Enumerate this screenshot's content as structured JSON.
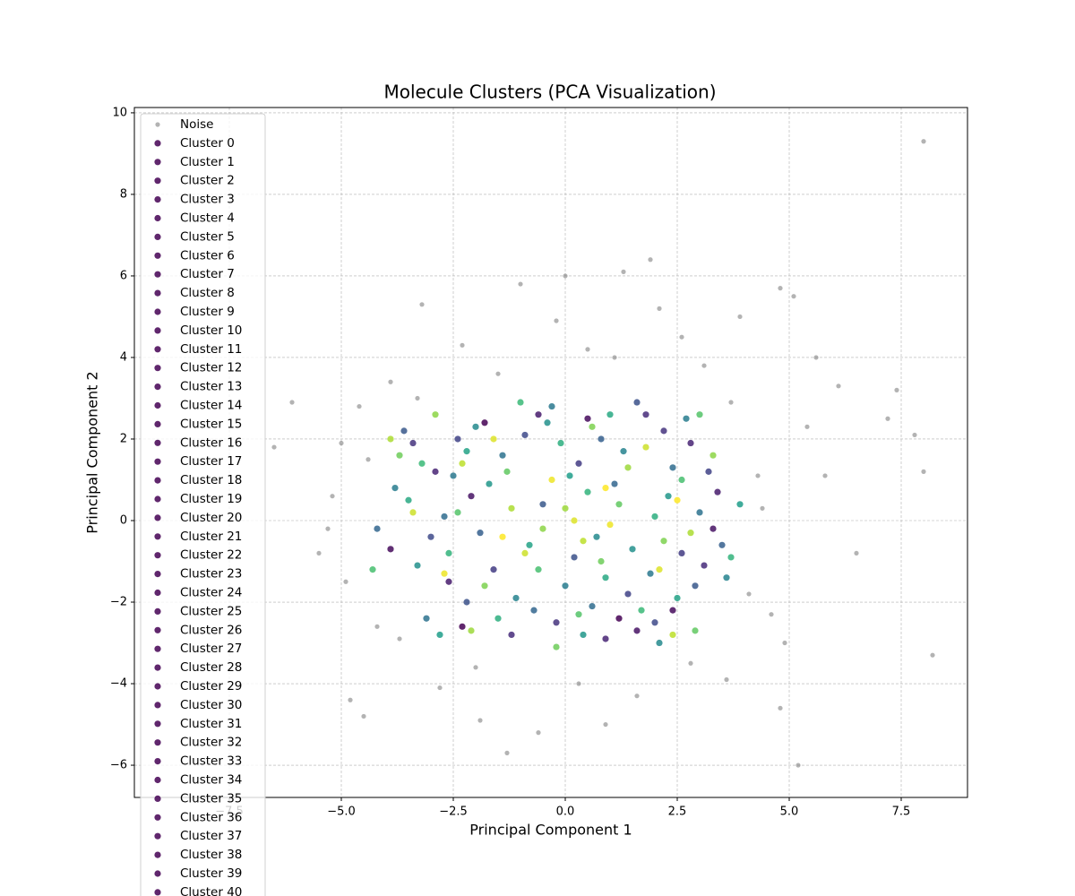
{
  "chart_data": {
    "type": "scatter",
    "title": "Molecule Clusters (PCA Visualization)",
    "x_label": "Principal Component 1",
    "y_label": "Principal Component 2",
    "xlim": [
      -9.62,
      8.98
    ],
    "ylim": [
      -6.79,
      10.13
    ],
    "xticks": [
      {
        "value": -7.5,
        "label": "−7.5"
      },
      {
        "value": -5,
        "label": "−5.0"
      },
      {
        "value": -2.5,
        "label": "−2.5"
      },
      {
        "value": 0,
        "label": "0.0"
      },
      2.5,
      {
        "value": 5,
        "label": "5.0"
      },
      7.5
    ],
    "yticks": [
      {
        "value": -6,
        "label": "−6"
      },
      {
        "value": -4,
        "label": "−4"
      },
      {
        "value": -2,
        "label": "−2"
      },
      0,
      2,
      4,
      6,
      8,
      10
    ],
    "grid": true,
    "legend": "upper left",
    "legend_marker_color": "#440154",
    "noise_color": "#808080",
    "colormap": [
      "#440154",
      "#482878",
      "#3e4989",
      "#31688e",
      "#26828e",
      "#1f9e89",
      "#35b779",
      "#6ece58",
      "#b5de2b",
      "#fde725"
    ],
    "series": [
      {
        "name": "Noise",
        "x": [
          8.0,
          8.2,
          7.4,
          7.8,
          -6.5,
          -5.0,
          0.0,
          1.3,
          1.9,
          4.8,
          5.1,
          -3.2,
          -1.3,
          5.2,
          -4.5,
          6.5,
          -5.5,
          4.8,
          7.2,
          8.0,
          -6.1,
          -4.8,
          6.1,
          5.6,
          -1.0,
          2.1,
          -0.6,
          0.9,
          3.9,
          -2.3,
          -4.6,
          4.6,
          5.4,
          -5.2,
          -4.9,
          4.3,
          3.6,
          -3.7,
          2.6,
          -2.8,
          -0.2,
          1.6,
          -1.9,
          0.5,
          3.1,
          -4.2,
          4.4,
          5.8,
          -5.3,
          -3.9,
          3.7,
          4.1,
          -4.4,
          -2.0,
          1.1,
          -1.5,
          0.3,
          2.8,
          -3.3,
          4.9
        ],
        "y": [
          9.3,
          -3.3,
          3.2,
          2.1,
          1.8,
          1.9,
          6.0,
          6.1,
          6.4,
          5.7,
          5.5,
          5.3,
          -5.7,
          -6.0,
          -4.8,
          -0.8,
          -0.8,
          -4.6,
          2.5,
          1.2,
          2.9,
          -4.4,
          3.3,
          4.0,
          5.8,
          5.2,
          -5.2,
          -5.0,
          5.0,
          4.3,
          2.8,
          -2.3,
          2.3,
          0.6,
          -1.5,
          1.1,
          -3.9,
          -2.9,
          4.5,
          -4.1,
          4.9,
          -4.3,
          -4.9,
          4.2,
          3.8,
          -2.6,
          0.3,
          1.1,
          -0.2,
          3.4,
          2.9,
          -1.8,
          1.5,
          -3.6,
          4.0,
          3.6,
          -4.0,
          -3.5,
          3.0,
          -3.0
        ]
      },
      {
        "name": "Cluster 0",
        "x": [
          -2.3,
          1.2,
          -1.8
        ],
        "y": [
          -2.6,
          -2.4,
          2.4
        ]
      },
      {
        "name": "Cluster 1",
        "x": [
          -3.9,
          0.5,
          2.4
        ],
        "y": [
          -0.7,
          2.5,
          -2.2
        ]
      },
      {
        "name": "Cluster 2",
        "x": [
          -2.1,
          1.6,
          3.3
        ],
        "y": [
          0.6,
          -2.7,
          -0.2
        ]
      },
      {
        "name": "Cluster 3",
        "x": [
          -0.6,
          3.4,
          -2.6
        ],
        "y": [
          2.6,
          0.7,
          -1.5
        ]
      },
      {
        "name": "Cluster 4",
        "x": [
          -2.9,
          0.9,
          2.8
        ],
        "y": [
          1.2,
          -2.9,
          1.9
        ]
      },
      {
        "name": "Cluster 5",
        "x": [
          1.8,
          -1.2,
          3.1
        ],
        "y": [
          2.6,
          -2.8,
          -1.1
        ]
      },
      {
        "name": "Cluster 6",
        "x": [
          -3.4,
          -0.2,
          2.2
        ],
        "y": [
          1.9,
          -2.5,
          2.2
        ]
      },
      {
        "name": "Cluster 7",
        "x": [
          -1.6,
          0.3,
          2.6
        ],
        "y": [
          -1.2,
          1.4,
          -0.8
        ]
      },
      {
        "name": "Cluster 8",
        "x": [
          -2.4,
          1.4,
          3.2
        ],
        "y": [
          2.0,
          -1.8,
          1.2
        ]
      },
      {
        "name": "Cluster 9",
        "x": [
          -0.9,
          -3.0,
          2.0
        ],
        "y": [
          2.1,
          -0.4,
          -2.5
        ]
      },
      {
        "name": "Cluster 10",
        "x": [
          1.6,
          -2.2,
          0.2
        ],
        "y": [
          2.9,
          -2.0,
          -0.9
        ]
      },
      {
        "name": "Cluster 11",
        "x": [
          -3.6,
          2.9,
          -0.5
        ],
        "y": [
          2.2,
          -1.6,
          0.4
        ]
      },
      {
        "name": "Cluster 12",
        "x": [
          0.8,
          -1.9,
          3.5
        ],
        "y": [
          2.0,
          -0.3,
          -0.6
        ]
      },
      {
        "name": "Cluster 13",
        "x": [
          -4.2,
          1.1,
          -0.7
        ],
        "y": [
          -0.2,
          0.9,
          -2.2
        ]
      },
      {
        "name": "Cluster 14",
        "x": [
          2.4,
          -2.7,
          0.6
        ],
        "y": [
          1.3,
          0.1,
          -2.1
        ]
      },
      {
        "name": "Cluster 15",
        "x": [
          -1.4,
          3.0,
          -3.1
        ],
        "y": [
          1.6,
          0.2,
          -2.4
        ]
      },
      {
        "name": "Cluster 16",
        "x": [
          1.9,
          -0.3,
          -2.5
        ],
        "y": [
          -1.3,
          2.8,
          1.1
        ]
      },
      {
        "name": "Cluster 17",
        "x": [
          0.0,
          2.7,
          -3.8
        ],
        "y": [
          -1.6,
          2.5,
          0.8
        ]
      },
      {
        "name": "Cluster 18",
        "x": [
          -1.1,
          1.3,
          3.6
        ],
        "y": [
          -1.9,
          1.7,
          -1.4
        ]
      },
      {
        "name": "Cluster 19",
        "x": [
          -2.0,
          0.7,
          2.1
        ],
        "y": [
          2.3,
          -0.4,
          -3.0
        ]
      },
      {
        "name": "Cluster 20",
        "x": [
          -3.3,
          1.5,
          -0.4
        ],
        "y": [
          -1.1,
          -0.7,
          2.4
        ]
      },
      {
        "name": "Cluster 21",
        "x": [
          2.3,
          -1.7,
          0.4
        ],
        "y": [
          0.6,
          0.9,
          -2.8
        ]
      },
      {
        "name": "Cluster 22",
        "x": [
          -2.8,
          0.1,
          3.9
        ],
        "y": [
          -2.8,
          1.1,
          0.4
        ]
      },
      {
        "name": "Cluster 23",
        "x": [
          -0.8,
          2.5,
          -2.2
        ],
        "y": [
          -0.6,
          -1.9,
          1.7
        ]
      },
      {
        "name": "Cluster 24",
        "x": [
          1.0,
          -3.5,
          0.9
        ],
        "y": [
          2.6,
          0.5,
          -1.4
        ]
      },
      {
        "name": "Cluster 25",
        "x": [
          -1.5,
          2.0,
          -0.1
        ],
        "y": [
          -2.4,
          0.1,
          1.9
        ]
      },
      {
        "name": "Cluster 26",
        "x": [
          3.7,
          -2.6,
          0.5
        ],
        "y": [
          -0.9,
          -0.8,
          0.7
        ]
      },
      {
        "name": "Cluster 27",
        "x": [
          -1.0,
          1.7,
          -3.2
        ],
        "y": [
          2.9,
          -2.2,
          1.4
        ]
      },
      {
        "name": "Cluster 28",
        "x": [
          2.6,
          -0.6,
          -4.3
        ],
        "y": [
          1.0,
          -1.2,
          -1.2
        ]
      },
      {
        "name": "Cluster 29",
        "x": [
          -2.4,
          0.3,
          3.0
        ],
        "y": [
          0.2,
          -2.3,
          2.6
        ]
      },
      {
        "name": "Cluster 30",
        "x": [
          1.2,
          -1.3,
          2.9
        ],
        "y": [
          0.4,
          1.2,
          -2.7
        ]
      },
      {
        "name": "Cluster 31",
        "x": [
          -3.7,
          0.8,
          -0.2
        ],
        "y": [
          1.6,
          -1.0,
          -3.1
        ]
      },
      {
        "name": "Cluster 32",
        "x": [
          2.2,
          -1.8,
          0.6
        ],
        "y": [
          -0.5,
          -1.6,
          2.3
        ]
      },
      {
        "name": "Cluster 33",
        "x": [
          -0.5,
          3.3,
          -2.9
        ],
        "y": [
          -0.2,
          1.6,
          2.6
        ]
      },
      {
        "name": "Cluster 34",
        "x": [
          1.4,
          -2.1,
          0.0
        ],
        "y": [
          1.3,
          -2.7,
          0.3
        ]
      },
      {
        "name": "Cluster 35",
        "x": [
          -1.2,
          2.8,
          -3.9
        ],
        "y": [
          0.3,
          -0.3,
          2.0
        ]
      },
      {
        "name": "Cluster 36",
        "x": [
          0.4,
          -2.3,
          2.4
        ],
        "y": [
          -0.5,
          1.4,
          -2.8
        ]
      },
      {
        "name": "Cluster 37",
        "x": [
          -0.9,
          1.8,
          -3.4
        ],
        "y": [
          -0.8,
          1.8,
          0.2
        ]
      },
      {
        "name": "Cluster 38",
        "x": [
          0.2,
          2.1,
          -1.6
        ],
        "y": [
          0.0,
          -1.2,
          2.0
        ]
      },
      {
        "name": "Cluster 39",
        "x": [
          -0.3,
          1.0,
          -2.7
        ],
        "y": [
          1.0,
          -0.1,
          -1.3
        ]
      },
      {
        "name": "Cluster 40",
        "x": [
          0.9,
          -1.4,
          2.5
        ],
        "y": [
          0.8,
          -0.4,
          0.5
        ]
      }
    ]
  }
}
